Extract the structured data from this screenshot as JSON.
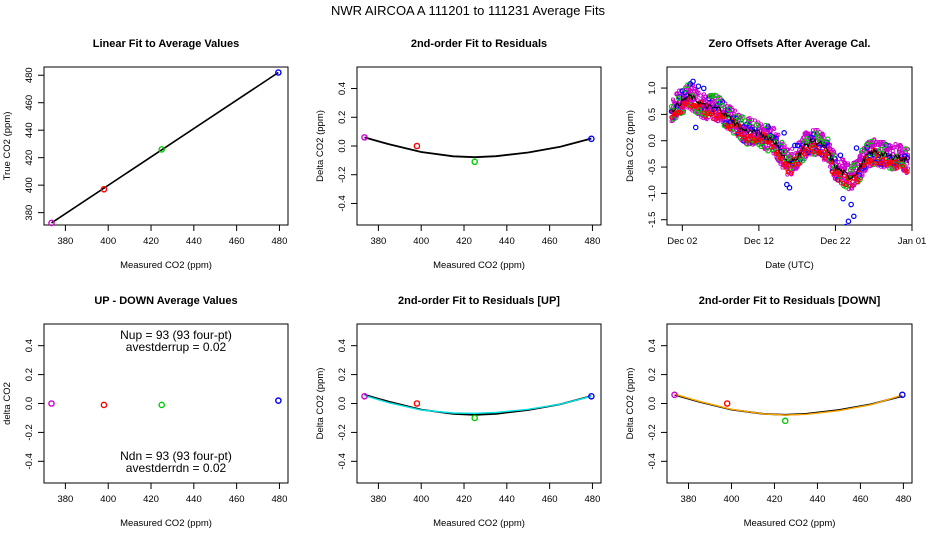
{
  "figure_title": "NWR   AIRCOA A   111201 to 111231   Average Fits",
  "colors": {
    "blue": "#0000ff",
    "red": "#ff0000",
    "green": "#00cc00",
    "purple": "#cc00cc",
    "black": "#000000",
    "cyan": "#00e5e5",
    "orange": "#ffa500"
  },
  "chart_data": [
    {
      "id": "p1",
      "type": "scatter",
      "title": "Linear Fit to Average Values",
      "xlabel": "Measured CO2 (ppm)",
      "ylabel": "True CO2 (ppm)",
      "xlim": [
        370,
        484
      ],
      "ylim": [
        371,
        486
      ],
      "xticks": [
        380,
        400,
        420,
        440,
        460,
        480
      ],
      "yticks": [
        380,
        400,
        420,
        440,
        460,
        480
      ],
      "points": [
        {
          "x": 373.5,
          "y": 372.5,
          "color": "purple"
        },
        {
          "x": 398,
          "y": 397,
          "color": "red"
        },
        {
          "x": 425,
          "y": 426,
          "color": "green"
        },
        {
          "x": 479.5,
          "y": 482,
          "color": "blue"
        }
      ],
      "fit_line": {
        "x": [
          373.5,
          479.5
        ],
        "y": [
          372.5,
          482
        ],
        "color": "black"
      }
    },
    {
      "id": "p2",
      "type": "scatter",
      "title": "2nd-order Fit to Residuals",
      "xlabel": "Measured CO2 (ppm)",
      "ylabel": "Delta CO2 (ppm)",
      "xlim": [
        370,
        484
      ],
      "ylim": [
        -0.55,
        0.55
      ],
      "xticks": [
        380,
        400,
        420,
        440,
        460,
        480
      ],
      "yticks": [
        -0.4,
        -0.2,
        0.0,
        0.2,
        0.4
      ],
      "yticklabels": [
        "-0.4",
        "-0.2",
        "0.0",
        "0.2",
        "0.4"
      ],
      "points": [
        {
          "x": 373.5,
          "y": 0.06,
          "color": "purple"
        },
        {
          "x": 398,
          "y": 0.0,
          "color": "red"
        },
        {
          "x": 425,
          "y": -0.11,
          "color": "green"
        },
        {
          "x": 479.5,
          "y": 0.05,
          "color": "blue"
        }
      ],
      "curves": [
        {
          "color": "black",
          "x": [
            373.5,
            385,
            400,
            415,
            425,
            435,
            450,
            465,
            479.5
          ],
          "y": [
            0.06,
            0.012,
            -0.042,
            -0.072,
            -0.078,
            -0.071,
            -0.045,
            -0.005,
            0.052
          ]
        }
      ]
    },
    {
      "id": "p3",
      "type": "scatter",
      "title": "Zero Offsets After Average Cal.",
      "xlabel": "Date (UTC)",
      "ylabel": "Delta CO2 (ppm)",
      "xlim": [
        0,
        32
      ],
      "ylim": [
        -1.6,
        1.4
      ],
      "xticks": [
        2,
        12,
        22,
        32
      ],
      "xticklabels": [
        "Dec 02",
        "Dec 12",
        "Dec 22",
        "Jan 01"
      ],
      "yticks": [
        -1.5,
        -1.0,
        -0.5,
        0.0,
        0.5,
        1.0
      ],
      "yticklabels": [
        "-1.5",
        "-1.0",
        "-0.5",
        "0.0",
        "0.5",
        "1.0"
      ]
    },
    {
      "id": "p4",
      "type": "scatter",
      "title": "UP - DOWN Average Values",
      "xlabel": "Measured CO2 (ppm)",
      "ylabel": "delta CO2",
      "xlim": [
        370,
        484
      ],
      "ylim": [
        -0.55,
        0.55
      ],
      "xticks": [
        380,
        400,
        420,
        440,
        460,
        480
      ],
      "yticks": [
        -0.4,
        -0.2,
        0.0,
        0.2,
        0.4
      ],
      "yticklabels": [
        "-0.4",
        "-0.2",
        "0.0",
        "0.2",
        "0.4"
      ],
      "points": [
        {
          "x": 373.5,
          "y": 0.0,
          "color": "purple"
        },
        {
          "x": 398,
          "y": -0.01,
          "color": "red"
        },
        {
          "x": 425,
          "y": -0.01,
          "color": "green"
        },
        {
          "x": 479.5,
          "y": 0.02,
          "color": "blue"
        }
      ],
      "annotations": {
        "up_line1": "Nup = 93 (93 four-pt)",
        "up_line2": "avestderrup =  0.02",
        "dn_line1": "Ndn = 93 (93 four-pt)",
        "dn_line2": "avestderrdn =  0.02"
      }
    },
    {
      "id": "p5",
      "type": "scatter",
      "title": "2nd-order Fit to Residuals [UP]",
      "xlabel": "Measured CO2 (ppm)",
      "ylabel": "Delta CO2 (ppm)",
      "xlim": [
        370,
        484
      ],
      "ylim": [
        -0.55,
        0.55
      ],
      "xticks": [
        380,
        400,
        420,
        440,
        460,
        480
      ],
      "yticks": [
        -0.4,
        -0.2,
        0.0,
        0.2,
        0.4
      ],
      "yticklabels": [
        "-0.4",
        "-0.2",
        "0.0",
        "0.2",
        "0.4"
      ],
      "points": [
        {
          "x": 373.5,
          "y": 0.05,
          "color": "purple"
        },
        {
          "x": 398,
          "y": 0.0,
          "color": "red"
        },
        {
          "x": 425,
          "y": -0.1,
          "color": "green"
        },
        {
          "x": 479.5,
          "y": 0.05,
          "color": "blue"
        }
      ],
      "curves": [
        {
          "color": "black",
          "x": [
            373.5,
            385,
            400,
            415,
            425,
            435,
            450,
            465,
            479.5
          ],
          "y": [
            0.06,
            0.012,
            -0.042,
            -0.072,
            -0.078,
            -0.071,
            -0.045,
            -0.005,
            0.052
          ]
        },
        {
          "color": "cyan",
          "x": [
            373.5,
            385,
            400,
            415,
            425,
            435,
            450,
            465,
            479.5
          ],
          "y": [
            0.055,
            0.005,
            -0.045,
            -0.066,
            -0.068,
            -0.062,
            -0.04,
            -0.005,
            0.05
          ]
        }
      ]
    },
    {
      "id": "p6",
      "type": "scatter",
      "title": "2nd-order Fit to Residuals [DOWN]",
      "xlabel": "Measured CO2 (ppm)",
      "ylabel": "Delta CO2 (ppm)",
      "xlim": [
        370,
        484
      ],
      "ylim": [
        -0.55,
        0.55
      ],
      "xticks": [
        380,
        400,
        420,
        440,
        460,
        480
      ],
      "yticks": [
        -0.4,
        -0.2,
        0.0,
        0.2,
        0.4
      ],
      "yticklabels": [
        "-0.4",
        "-0.2",
        "0.0",
        "0.2",
        "0.4"
      ],
      "points": [
        {
          "x": 373.5,
          "y": 0.06,
          "color": "purple"
        },
        {
          "x": 398,
          "y": 0.0,
          "color": "red"
        },
        {
          "x": 425,
          "y": -0.12,
          "color": "green"
        },
        {
          "x": 479.5,
          "y": 0.06,
          "color": "blue"
        }
      ],
      "curves": [
        {
          "color": "black",
          "x": [
            373.5,
            385,
            400,
            415,
            425,
            435,
            450,
            465,
            479.5
          ],
          "y": [
            0.06,
            0.012,
            -0.042,
            -0.072,
            -0.078,
            -0.071,
            -0.045,
            -0.005,
            0.052
          ]
        },
        {
          "color": "orange",
          "x": [
            373.5,
            385,
            400,
            415,
            425,
            435,
            450,
            465,
            479.5
          ],
          "y": [
            0.065,
            0.015,
            -0.04,
            -0.072,
            -0.08,
            -0.075,
            -0.05,
            -0.008,
            0.058
          ]
        }
      ]
    }
  ]
}
